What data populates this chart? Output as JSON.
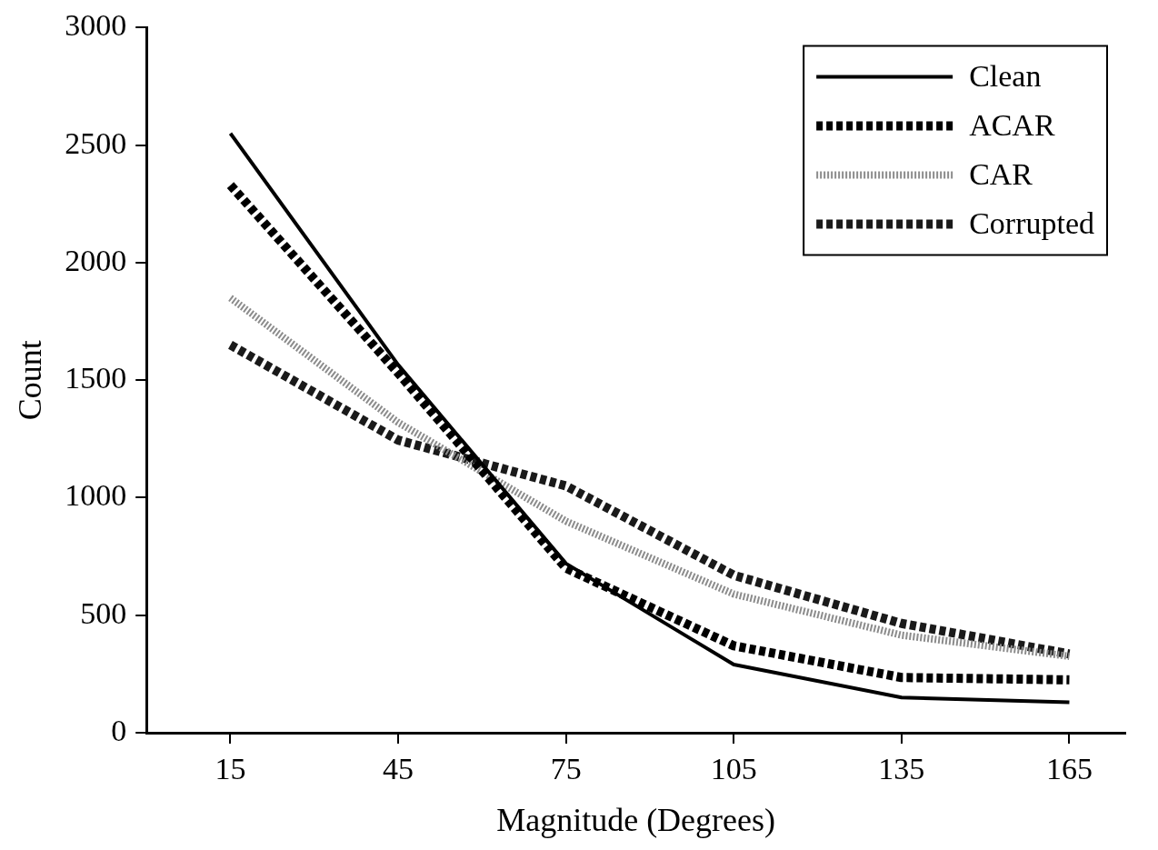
{
  "chart_data": {
    "type": "line",
    "xlabel": "Magnitude (Degrees)",
    "ylabel": "Count",
    "x": [
      15,
      45,
      75,
      105,
      135,
      165
    ],
    "xlim": [
      0,
      175
    ],
    "xticks": [
      15,
      45,
      75,
      105,
      135,
      165
    ],
    "ylim": [
      0,
      3000
    ],
    "yticks": [
      0,
      500,
      1000,
      1500,
      2000,
      2500,
      3000
    ],
    "grid": false,
    "legend": "top right",
    "marker": "none",
    "series": [
      {
        "name": "Clean",
        "color": "#000000",
        "line_style": "solid",
        "values": [
          2550,
          1565,
          720,
          290,
          150,
          130
        ]
      },
      {
        "name": "ACAR",
        "color": "#000000",
        "line_style": "dashed",
        "values": [
          2330,
          1530,
          700,
          370,
          235,
          225
        ]
      },
      {
        "name": "CAR",
        "color": "#8c8c8c",
        "line_style": "dotted",
        "values": [
          1850,
          1320,
          900,
          590,
          415,
          325
        ]
      },
      {
        "name": "Corrupted",
        "color": "#1a1a1a",
        "line_style": "dashed",
        "values": [
          1650,
          1245,
          1050,
          670,
          465,
          335
        ]
      }
    ]
  }
}
